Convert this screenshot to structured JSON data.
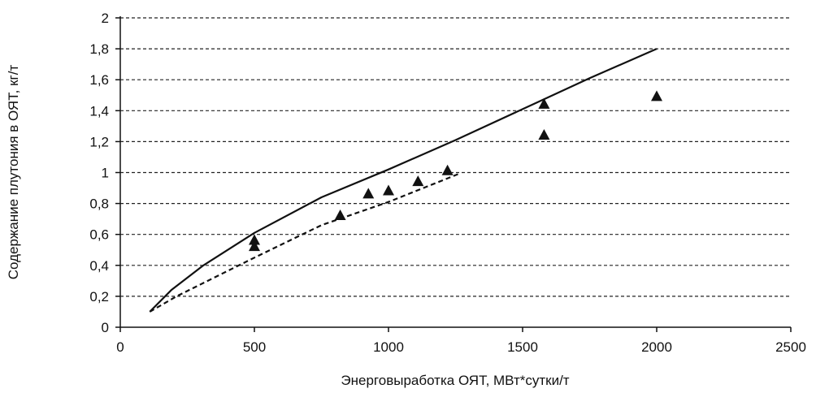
{
  "chart_data": {
    "type": "line",
    "title": "",
    "xlabel": "Энерговыработка ОЯТ, МВт*сутки/т",
    "ylabel": "Содержание плутония в ОЯТ, кг/т",
    "xlim": [
      0,
      2500
    ],
    "ylim": [
      0,
      2
    ],
    "x_ticks": [
      0,
      500,
      1000,
      1500,
      2000,
      2500
    ],
    "x_tick_labels": [
      "0",
      "500",
      "1000",
      "1500",
      "2000",
      "2500"
    ],
    "y_ticks": [
      0,
      0.2,
      0.4,
      0.6,
      0.8,
      1,
      1.2,
      1.4,
      1.6,
      1.8,
      2
    ],
    "y_tick_labels": [
      "0",
      "0,2",
      "0,4",
      "0,6",
      "0,8",
      "1",
      "1,2",
      "1,4",
      "1,6",
      "1,8",
      "2"
    ],
    "grid": "horizontal-dashed",
    "legend": "none",
    "series": [
      {
        "style": "solid-line",
        "color": "#111111",
        "x": [
          110,
          190,
          310,
          500,
          750,
          1000,
          1250,
          1500,
          1750,
          2000
        ],
        "y": [
          0.1,
          0.24,
          0.4,
          0.61,
          0.84,
          1.02,
          1.21,
          1.41,
          1.61,
          1.8
        ]
      },
      {
        "style": "dashed-line",
        "color": "#111111",
        "x": [
          110,
          210,
          500,
          750,
          1000,
          1260
        ],
        "y": [
          0.1,
          0.2,
          0.45,
          0.66,
          0.81,
          0.99
        ]
      },
      {
        "style": "triangle-markers",
        "color": "#111111",
        "x": [
          500,
          500,
          820,
          925,
          1000,
          1110,
          1220,
          1580,
          1580,
          2000
        ],
        "y": [
          0.52,
          0.56,
          0.72,
          0.86,
          0.88,
          0.94,
          1.01,
          1.24,
          1.44,
          1.49
        ]
      }
    ]
  }
}
